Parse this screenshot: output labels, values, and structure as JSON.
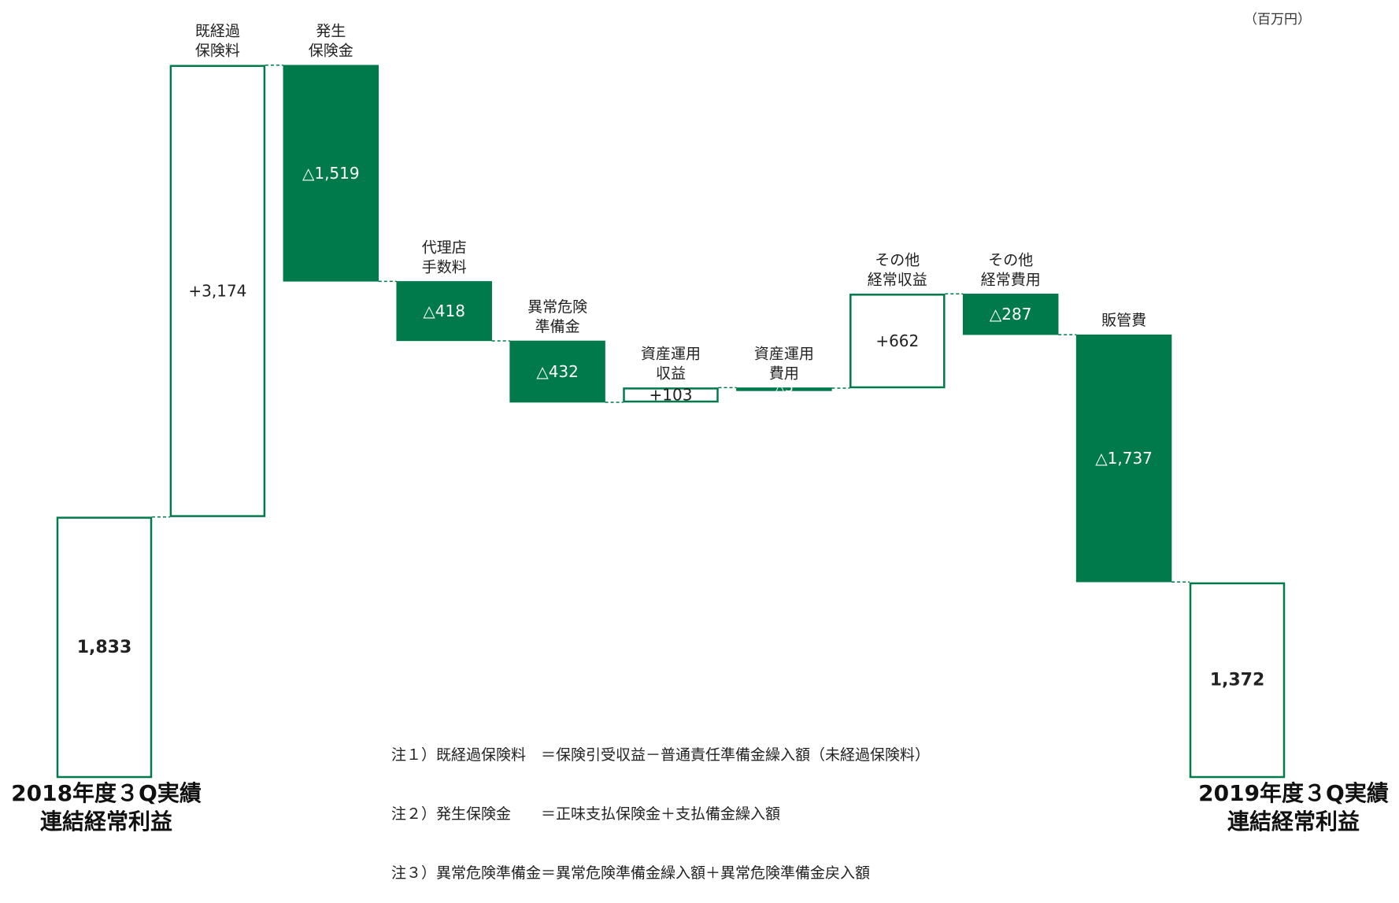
{
  "unit": "（百万円）",
  "chart_data": {
    "type": "waterfall",
    "title": "",
    "unit": "（百万円）",
    "steps": [
      {
        "kind": "total",
        "value": 1833,
        "display": "1,833",
        "label_lines": [
          "2018年度３Q実績",
          "連結経常利益"
        ]
      },
      {
        "kind": "increase",
        "value": 3174,
        "display": "+3,174",
        "label_lines": [
          "既経過",
          "保険料"
        ]
      },
      {
        "kind": "decrease",
        "value": -1519,
        "display": "△1,519",
        "label_lines": [
          "発生",
          "保険金"
        ]
      },
      {
        "kind": "decrease",
        "value": -418,
        "display": "△418",
        "label_lines": [
          "代理店",
          "手数料"
        ]
      },
      {
        "kind": "decrease",
        "value": -432,
        "display": "△432",
        "label_lines": [
          "異常危険",
          "準備金"
        ]
      },
      {
        "kind": "increase",
        "value": 103,
        "display": "+103",
        "label_lines": [
          "資産運用",
          "収益"
        ]
      },
      {
        "kind": "decrease",
        "value": -3,
        "display": "△3",
        "label_lines": [
          "資産運用",
          "費用"
        ]
      },
      {
        "kind": "increase",
        "value": 662,
        "display": "+662",
        "label_lines": [
          "その他",
          "経常収益"
        ]
      },
      {
        "kind": "decrease",
        "value": -287,
        "display": "△287",
        "label_lines": [
          "その他",
          "経常費用"
        ]
      },
      {
        "kind": "decrease",
        "value": -1737,
        "display": "△1,737",
        "label_lines": [
          "販管費"
        ]
      },
      {
        "kind": "total",
        "value": 1372,
        "display": "1,372",
        "label_lines": [
          "2019年度３Q実績",
          "連結経常利益"
        ]
      }
    ],
    "colors": {
      "decrease_fill": "#007a4a",
      "outline": "#007a4a",
      "increase_fill": "#ffffff"
    }
  },
  "notes": [
    "注１）既経過保険料　＝保険引受収益－普通責任準備金繰入額（未経過保険料）",
    "注２）発生保険金　　＝正味支払保険金＋支払備金繰入額",
    "注３）異常危険準備金＝異常危険準備金繰入額＋異常危険準備金戻入額"
  ]
}
